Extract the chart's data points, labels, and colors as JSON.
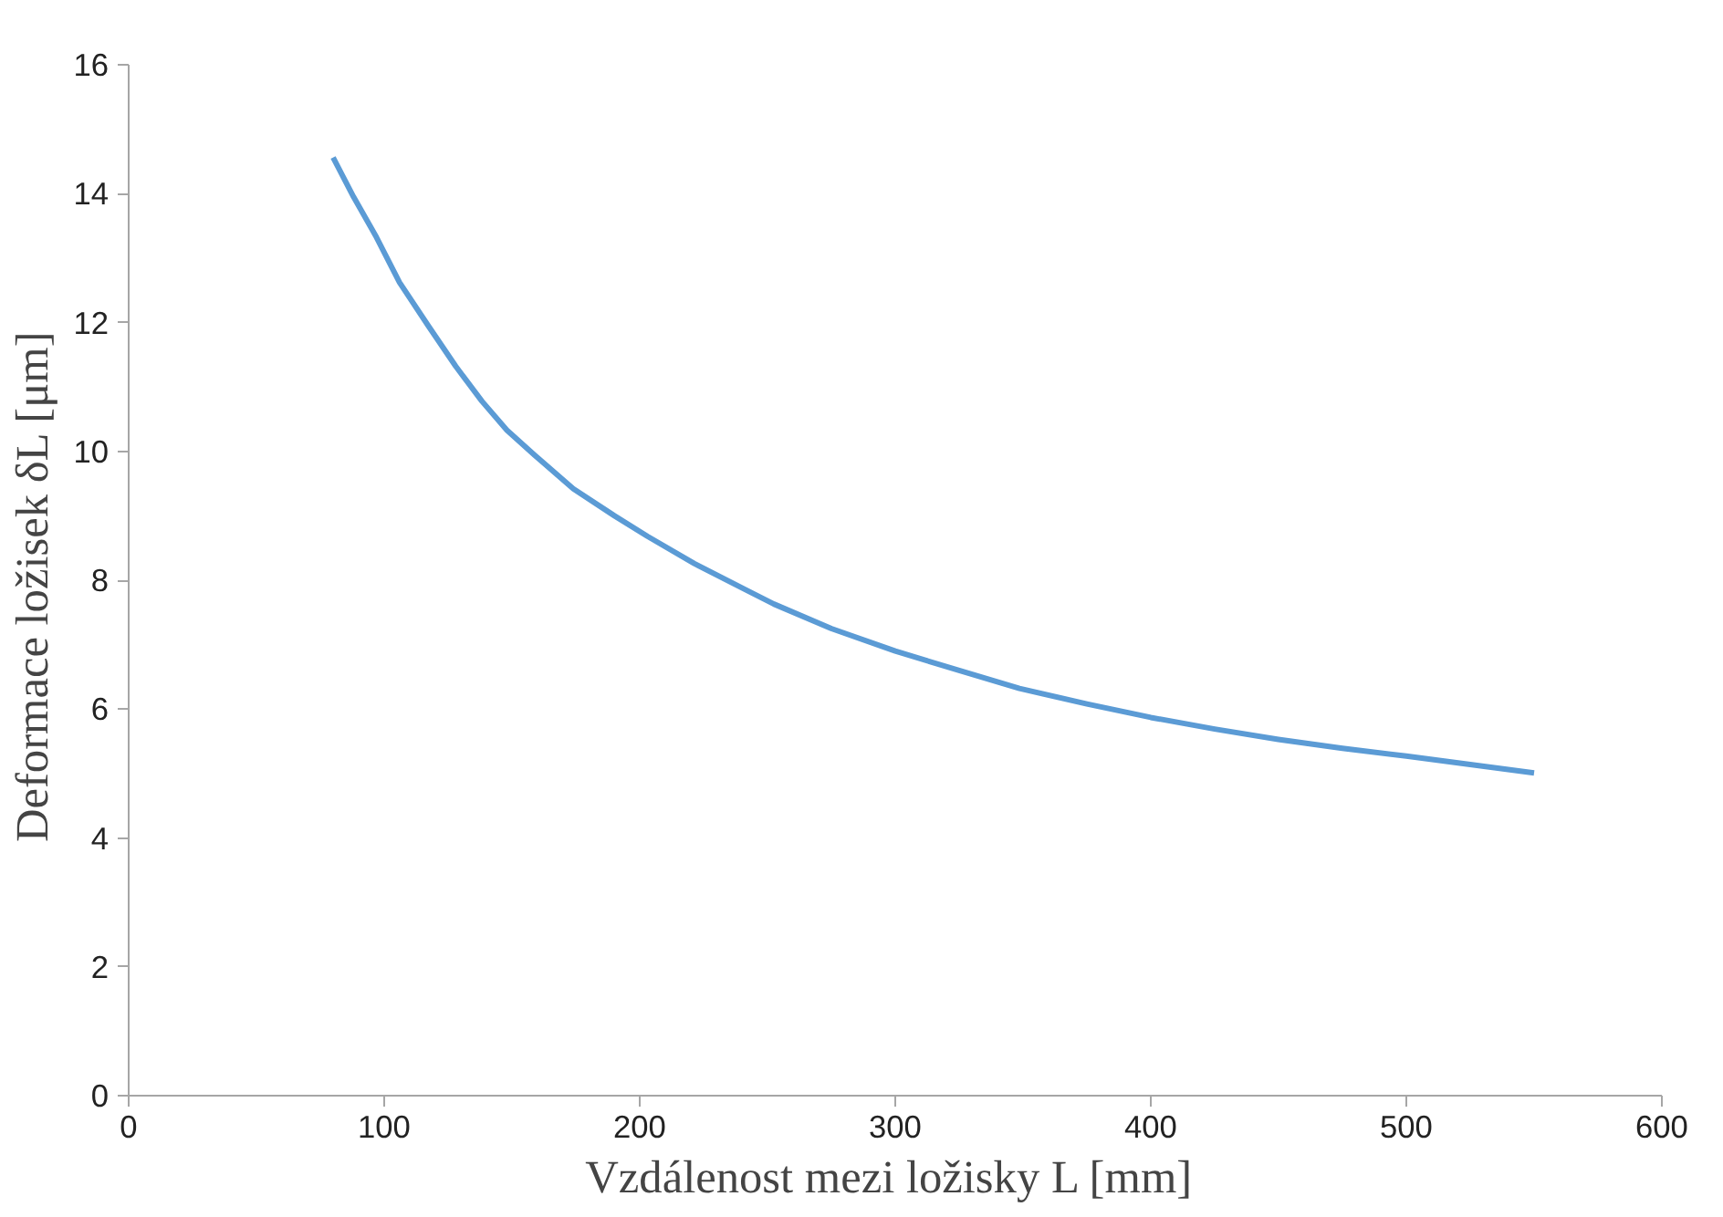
{
  "chart_data": {
    "type": "line",
    "xlabel": "Vzdálenost mezi ložisky L  [mm]",
    "ylabel": "Deformace ložisek  δL [μm]",
    "x": [
      80,
      88,
      96.6,
      106,
      117.4,
      128,
      138.2,
      148,
      158.9,
      174,
      190.1,
      203.1,
      221.3,
      242.1,
      252.5,
      275,
      300,
      325,
      348.6,
      375,
      400,
      425,
      449.9,
      475,
      500,
      525,
      550
    ],
    "series": [
      {
        "color": "#5b9bd5",
        "values": [
          14.56,
          13.95,
          13.35,
          12.62,
          11.94,
          11.32,
          10.78,
          10.33,
          9.94,
          9.42,
          9.0,
          8.68,
          8.26,
          7.84,
          7.63,
          7.25,
          6.9,
          6.6,
          6.32,
          6.08,
          5.87,
          5.69,
          5.53,
          5.39,
          5.27,
          5.14,
          5.01
        ]
      }
    ],
    "xlim": [
      0,
      600
    ],
    "xticks": [
      0,
      100,
      200,
      300,
      400,
      500,
      600
    ],
    "ylim": [
      0,
      16
    ],
    "yticks": [
      0,
      2,
      4,
      6,
      8,
      10,
      12,
      14,
      16
    ],
    "grid": false,
    "marker": "none",
    "line_style": "solid"
  }
}
